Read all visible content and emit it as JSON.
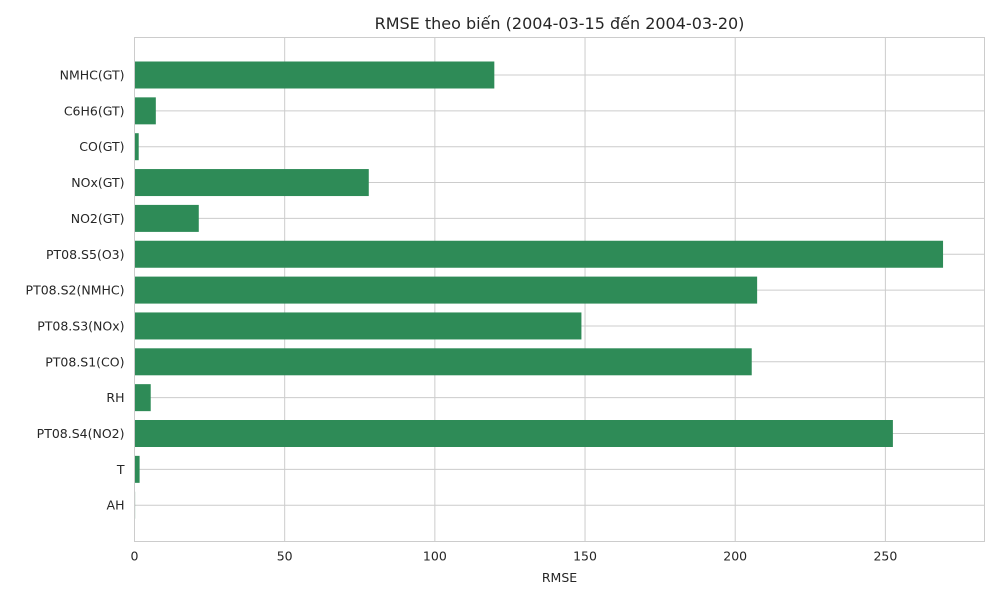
{
  "chart_data": {
    "type": "bar",
    "orientation": "horizontal",
    "title": "RMSE theo biến (2004-03-15 đến 2004-03-20)",
    "xlabel": "RMSE",
    "ylabel": "",
    "xlim": [
      0,
      283
    ],
    "xticks": [
      0,
      50,
      100,
      150,
      200,
      250
    ],
    "grid": true,
    "bar_color": "#2e8b57",
    "categories": [
      "NMHC(GT)",
      "C6H6(GT)",
      "CO(GT)",
      "NOx(GT)",
      "NO2(GT)",
      "PT08.S5(O3)",
      "PT08.S2(NMHC)",
      "PT08.S3(NOx)",
      "PT08.S1(CO)",
      "RH",
      "PT08.S4(NO2)",
      "T",
      "AH"
    ],
    "values": [
      119.8,
      7.1,
      1.4,
      78.0,
      21.4,
      269.2,
      207.3,
      148.8,
      205.5,
      5.4,
      252.5,
      1.7,
      0.2
    ]
  }
}
